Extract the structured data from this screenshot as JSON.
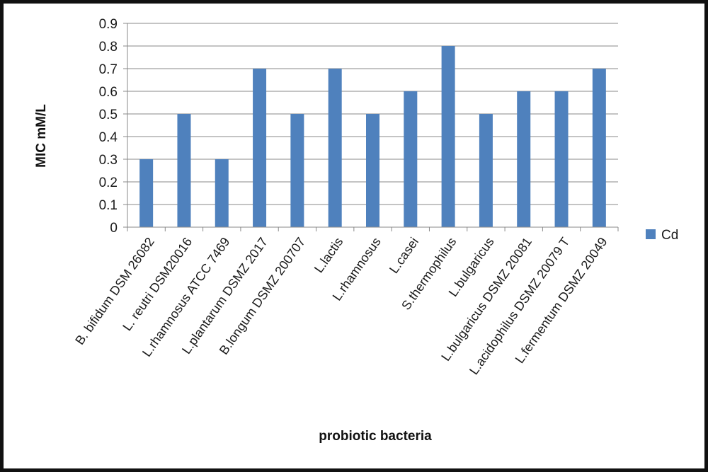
{
  "chart_data": {
    "type": "bar",
    "title": "",
    "xlabel": "probiotic bacteria",
    "ylabel": "MIC mM/L",
    "ylim": [
      0,
      0.9
    ],
    "yticks": [
      "0",
      "0.1",
      "0.2",
      "0.3",
      "0.4",
      "0.5",
      "0.6",
      "0.7",
      "0.8",
      "0.9"
    ],
    "grid": true,
    "legend_position": "right",
    "categories": [
      "B. bifidum DSM 26082",
      "L. reutri DSM20016",
      "L.rhamnosus ATCC 7469",
      "L.plantarum DSMZ 2017",
      "B.longum DSMZ 200707",
      "L.lactis",
      "L.rhamnosus",
      "L.casei",
      "S.thermophilus",
      "L.bulgaricus",
      "L.bulgaricus DSMZ 20081",
      "L.acidophilus DSMZ 20079 T",
      "L.fermentum DSMZ 20049"
    ],
    "series": [
      {
        "name": "Cd",
        "color": "#4f81bd",
        "values": [
          0.3,
          0.5,
          0.3,
          0.7,
          0.5,
          0.7,
          0.5,
          0.6,
          0.8,
          0.5,
          0.6,
          0.6,
          0.7
        ]
      }
    ]
  }
}
